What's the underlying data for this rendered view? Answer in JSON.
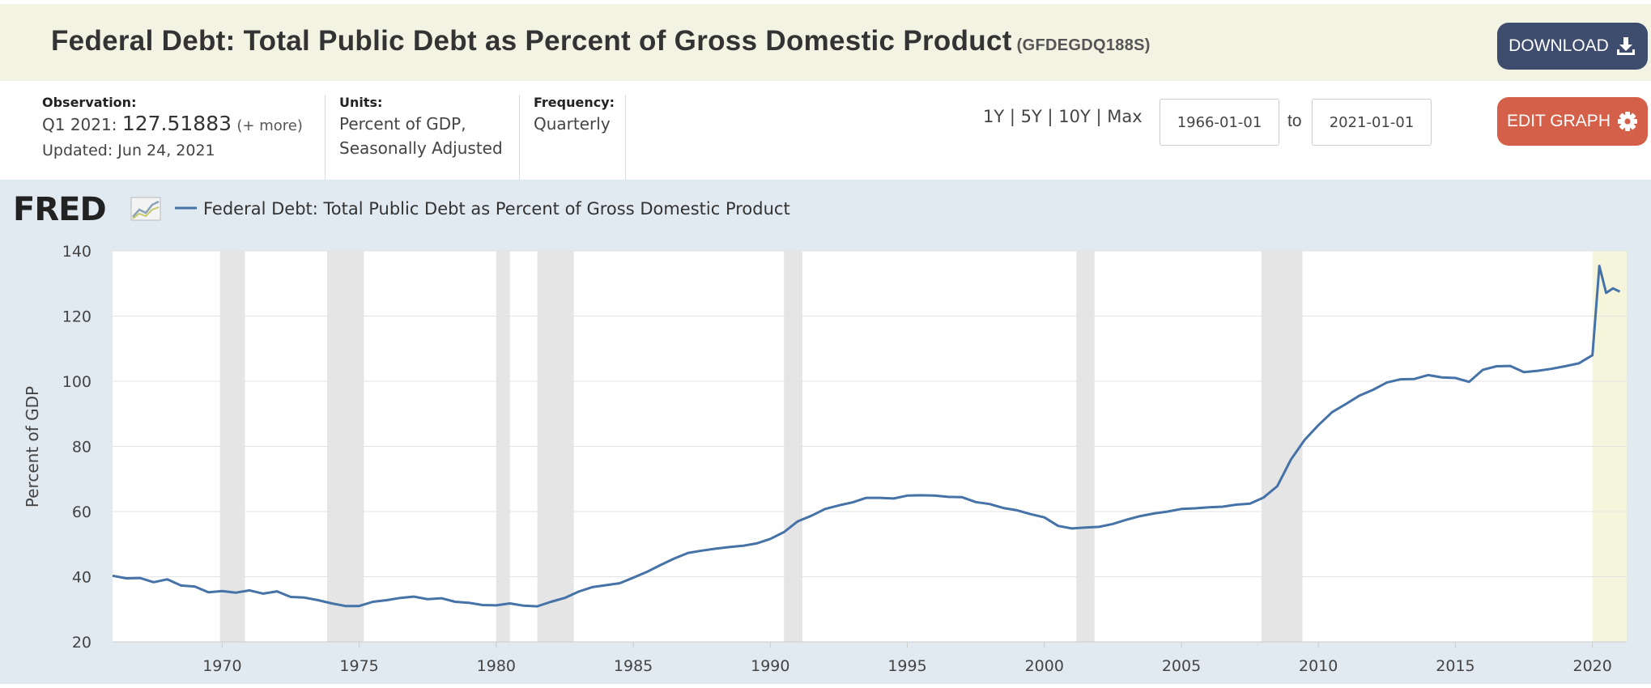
{
  "header": {
    "title": "Federal Debt: Total Public Debt as Percent of Gross Domestic Product",
    "series_id": "(GFDEGDQ188S)",
    "download_label": "DOWNLOAD"
  },
  "meta": {
    "observation_label": "Observation:",
    "observation_period": "Q1 2021:",
    "observation_value": "127.51883",
    "observation_more": "(+ more)",
    "updated": "Updated: Jun 24, 2021",
    "units_label": "Units:",
    "units_line1": "Percent of GDP,",
    "units_line2": "Seasonally Adjusted",
    "frequency_label": "Frequency:",
    "frequency_value": "Quarterly"
  },
  "controls": {
    "range_1y": "1Y",
    "range_5y": "5Y",
    "range_10y": "10Y",
    "range_max": "Max",
    "start_date": "1966-01-01",
    "to_label": "to",
    "end_date": "2021-01-01",
    "edit_label": "EDIT GRAPH"
  },
  "colors": {
    "header_bg": "#f3f3e3",
    "download_btn": "#3e4d6e",
    "edit_btn": "#d4604a",
    "graph_bg": "#e1e9f1",
    "series_line": "#4572a7",
    "recession": "#e5e5e5",
    "highlight": "#f5f5dc"
  },
  "chart_data": {
    "type": "line",
    "logo": "FRED",
    "legend": "Federal Debt: Total Public Debt as Percent of Gross Domestic Product",
    "ylabel": "Percent of GDP",
    "xlabel": "",
    "ylim": [
      20,
      140
    ],
    "xlim": [
      1966.0,
      2021.25
    ],
    "yticks": [
      20,
      40,
      60,
      80,
      100,
      120,
      140
    ],
    "xticks": [
      1970,
      1975,
      1980,
      1985,
      1990,
      1995,
      2000,
      2005,
      2010,
      2015,
      2020
    ],
    "grid": "horizontal",
    "recessions": [
      [
        1969.92,
        1970.83
      ],
      [
        1973.83,
        1975.17
      ],
      [
        1980.0,
        1980.5
      ],
      [
        1981.5,
        1982.83
      ],
      [
        1990.5,
        1991.17
      ],
      [
        2001.17,
        2001.83
      ],
      [
        2007.92,
        2009.42
      ]
    ],
    "highlight_range": [
      2020.0,
      2021.25
    ],
    "series": [
      {
        "name": "Federal Debt: Total Public Debt as Percent of Gross Domestic Product",
        "points": [
          [
            1966.0,
            40.3
          ],
          [
            1966.5,
            39.5
          ],
          [
            1967.0,
            39.6
          ],
          [
            1967.5,
            38.3
          ],
          [
            1968.0,
            39.2
          ],
          [
            1968.5,
            37.3
          ],
          [
            1969.0,
            37.0
          ],
          [
            1969.5,
            35.2
          ],
          [
            1970.0,
            35.6
          ],
          [
            1970.5,
            35.1
          ],
          [
            1971.0,
            35.8
          ],
          [
            1971.5,
            34.8
          ],
          [
            1972.0,
            35.5
          ],
          [
            1972.5,
            33.8
          ],
          [
            1973.0,
            33.6
          ],
          [
            1973.5,
            32.8
          ],
          [
            1974.0,
            31.8
          ],
          [
            1974.5,
            31.0
          ],
          [
            1975.0,
            31.0
          ],
          [
            1975.5,
            32.3
          ],
          [
            1976.0,
            32.8
          ],
          [
            1976.5,
            33.5
          ],
          [
            1977.0,
            33.9
          ],
          [
            1977.5,
            33.1
          ],
          [
            1978.0,
            33.4
          ],
          [
            1978.5,
            32.3
          ],
          [
            1979.0,
            32.0
          ],
          [
            1979.5,
            31.3
          ],
          [
            1980.0,
            31.2
          ],
          [
            1980.5,
            31.8
          ],
          [
            1981.0,
            31.1
          ],
          [
            1981.5,
            30.9
          ],
          [
            1982.0,
            32.3
          ],
          [
            1982.5,
            33.5
          ],
          [
            1983.0,
            35.4
          ],
          [
            1983.5,
            36.8
          ],
          [
            1984.0,
            37.4
          ],
          [
            1984.5,
            38.0
          ],
          [
            1985.0,
            39.7
          ],
          [
            1985.5,
            41.5
          ],
          [
            1986.0,
            43.6
          ],
          [
            1986.5,
            45.6
          ],
          [
            1987.0,
            47.3
          ],
          [
            1987.5,
            48.0
          ],
          [
            1988.0,
            48.6
          ],
          [
            1988.5,
            49.1
          ],
          [
            1989.0,
            49.5
          ],
          [
            1989.5,
            50.2
          ],
          [
            1990.0,
            51.6
          ],
          [
            1990.5,
            53.7
          ],
          [
            1991.0,
            57.0
          ],
          [
            1991.5,
            58.7
          ],
          [
            1992.0,
            60.8
          ],
          [
            1992.5,
            61.9
          ],
          [
            1993.0,
            62.8
          ],
          [
            1993.5,
            64.2
          ],
          [
            1994.0,
            64.2
          ],
          [
            1994.5,
            64.0
          ],
          [
            1995.0,
            64.9
          ],
          [
            1995.5,
            65.0
          ],
          [
            1996.0,
            64.9
          ],
          [
            1996.5,
            64.5
          ],
          [
            1997.0,
            64.4
          ],
          [
            1997.5,
            62.9
          ],
          [
            1998.0,
            62.3
          ],
          [
            1998.5,
            61.1
          ],
          [
            1999.0,
            60.4
          ],
          [
            1999.5,
            59.2
          ],
          [
            2000.0,
            58.2
          ],
          [
            2000.5,
            55.6
          ],
          [
            2001.0,
            54.8
          ],
          [
            2001.5,
            55.1
          ],
          [
            2002.0,
            55.3
          ],
          [
            2002.5,
            56.2
          ],
          [
            2003.0,
            57.5
          ],
          [
            2003.5,
            58.6
          ],
          [
            2004.0,
            59.4
          ],
          [
            2004.5,
            60.0
          ],
          [
            2005.0,
            60.8
          ],
          [
            2005.5,
            61.0
          ],
          [
            2006.0,
            61.3
          ],
          [
            2006.5,
            61.5
          ],
          [
            2007.0,
            62.1
          ],
          [
            2007.5,
            62.4
          ],
          [
            2008.0,
            64.3
          ],
          [
            2008.5,
            67.8
          ],
          [
            2009.0,
            76.0
          ],
          [
            2009.5,
            82.0
          ],
          [
            2010.0,
            86.5
          ],
          [
            2010.5,
            90.5
          ],
          [
            2011.0,
            93.0
          ],
          [
            2011.5,
            95.6
          ],
          [
            2012.0,
            97.4
          ],
          [
            2012.5,
            99.6
          ],
          [
            2013.0,
            100.6
          ],
          [
            2013.5,
            100.7
          ],
          [
            2014.0,
            101.9
          ],
          [
            2014.5,
            101.2
          ],
          [
            2015.0,
            101.0
          ],
          [
            2015.5,
            99.8
          ],
          [
            2016.0,
            103.5
          ],
          [
            2016.5,
            104.6
          ],
          [
            2017.0,
            104.7
          ],
          [
            2017.5,
            102.8
          ],
          [
            2018.0,
            103.2
          ],
          [
            2018.5,
            103.8
          ],
          [
            2019.0,
            104.6
          ],
          [
            2019.5,
            105.5
          ],
          [
            2020.0,
            108.0
          ],
          [
            2020.25,
            135.4
          ],
          [
            2020.5,
            127.1
          ],
          [
            2020.75,
            128.5
          ],
          [
            2021.0,
            127.5
          ]
        ]
      }
    ]
  }
}
